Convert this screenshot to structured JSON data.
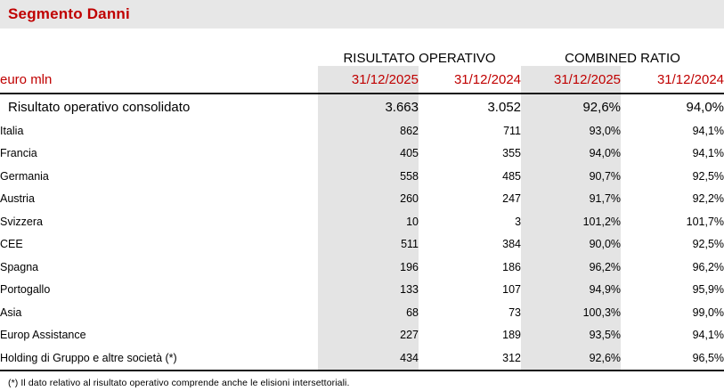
{
  "title": "Segmento Danni",
  "unit_label": "euro mln",
  "column_groups": [
    {
      "label": "RISULTATO OPERATIVO"
    },
    {
      "label": "COMBINED RATIO"
    }
  ],
  "column_headers": [
    "31/12/2025",
    "31/12/2024",
    "31/12/2025",
    "31/12/2024"
  ],
  "table": {
    "total_row": {
      "label": "Risultato operativo consolidato",
      "values": [
        "3.663",
        "3.052",
        "92,6%",
        "94,0%"
      ]
    },
    "rows": [
      {
        "label": "Italia",
        "values": [
          "862",
          "711",
          "93,0%",
          "94,1%"
        ]
      },
      {
        "label": "Francia",
        "values": [
          "405",
          "355",
          "94,0%",
          "94,1%"
        ]
      },
      {
        "label": "Germania",
        "values": [
          "558",
          "485",
          "90,7%",
          "92,5%"
        ]
      },
      {
        "label": "Austria",
        "values": [
          "260",
          "247",
          "91,7%",
          "92,2%"
        ]
      },
      {
        "label": "Svizzera",
        "values": [
          "10",
          "3",
          "101,2%",
          "101,7%"
        ]
      },
      {
        "label": "CEE",
        "values": [
          "511",
          "384",
          "90,0%",
          "92,5%"
        ]
      },
      {
        "label": "Spagna",
        "values": [
          "196",
          "186",
          "96,2%",
          "96,2%"
        ]
      },
      {
        "label": "Portogallo",
        "values": [
          "133",
          "107",
          "94,9%",
          "95,9%"
        ]
      },
      {
        "label": "Asia",
        "values": [
          "68",
          "73",
          "100,3%",
          "99,0%"
        ]
      },
      {
        "label": "Europ Assistance",
        "values": [
          "227",
          "189",
          "93,5%",
          "94,1%"
        ]
      },
      {
        "label": "Holding di Gruppo e altre società (*)",
        "values": [
          "434",
          "312",
          "92,6%",
          "96,5%"
        ]
      }
    ]
  },
  "footnote": "(*) Il dato relativo al risultato operativo comprende anche le elisioni intersettoriali.",
  "colors": {
    "accent_red": "#c00000",
    "header_bar_bg": "#e7e7e7",
    "highlight_column_bg": "#e4e4e4",
    "rule_black": "#141414"
  }
}
